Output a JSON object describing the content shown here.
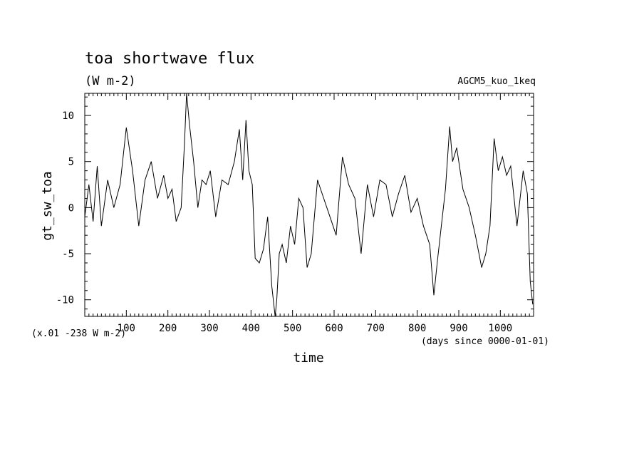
{
  "chart_data": {
    "type": "line",
    "title": "toa shortwave flux",
    "units": "(W m-2)",
    "experiment": "AGCM5_kuo_1keq",
    "xlabel": "time",
    "ylabel": "gt_sw_toa",
    "x_units_note": "(days since 0000-01-01)",
    "y_scale_note": "(x.01 -238 W m-2)",
    "xlim": [
      0,
      1080
    ],
    "ylim": [
      -11.8,
      12.4
    ],
    "x_ticks": [
      100,
      200,
      300,
      400,
      500,
      600,
      700,
      800,
      900,
      1000
    ],
    "x_tick_labels": [
      "100",
      "200",
      "300",
      "400",
      "500",
      "600",
      "700",
      "800",
      "900",
      "1000"
    ],
    "y_ticks": [
      10,
      5,
      0,
      -5,
      -10
    ],
    "y_tick_labels": [
      "10",
      "5",
      "0",
      "-5",
      "-10"
    ],
    "grid": false,
    "series": [
      {
        "values_x": [
          0,
          10,
          20,
          30,
          40,
          55,
          70,
          85,
          100,
          115,
          130,
          145,
          160,
          175,
          190,
          200,
          210,
          220,
          232,
          240,
          245,
          252,
          262,
          272,
          282,
          292,
          302,
          315,
          330,
          345,
          360,
          372,
          380,
          388,
          395,
          403,
          410,
          420,
          430,
          440,
          450,
          458,
          462,
          468,
          475,
          485,
          495,
          505,
          515,
          525,
          535,
          545,
          560,
          575,
          590,
          605,
          620,
          635,
          650,
          665,
          680,
          695,
          710,
          725,
          740,
          755,
          770,
          785,
          800,
          815,
          830,
          840,
          848,
          858,
          868,
          878,
          885,
          895,
          910,
          925,
          940,
          955,
          965,
          975,
          985,
          995,
          1005,
          1015,
          1025,
          1040,
          1055,
          1065,
          1072,
          1078
        ],
        "values_y": [
          -1,
          2.5,
          -1.5,
          4.5,
          -2,
          3,
          0,
          2.5,
          8.7,
          4,
          -2,
          3,
          5,
          1,
          3.5,
          1,
          2,
          -1.5,
          0,
          7,
          12.4,
          9,
          5,
          0,
          3,
          2.5,
          4,
          -1,
          3,
          2.5,
          5,
          8.5,
          3,
          9.5,
          4,
          2.5,
          -5.5,
          -6,
          -4.5,
          -1,
          -8.5,
          -11.8,
          -10,
          -5,
          -4,
          -6,
          -2,
          -4,
          1,
          0,
          -6.5,
          -5,
          3,
          1,
          -1,
          -3,
          5.5,
          2.5,
          1,
          -5,
          2.5,
          -1,
          3,
          2.5,
          -1,
          1.5,
          3.5,
          -0.5,
          1,
          -2,
          -4,
          -9.5,
          -6,
          -2,
          2,
          8.8,
          5,
          6.5,
          2,
          0,
          -3,
          -6.5,
          -5,
          -2,
          7.5,
          4,
          5.5,
          3.5,
          4.5,
          -2,
          4,
          1.5,
          -8,
          -10.5
        ]
      }
    ]
  }
}
